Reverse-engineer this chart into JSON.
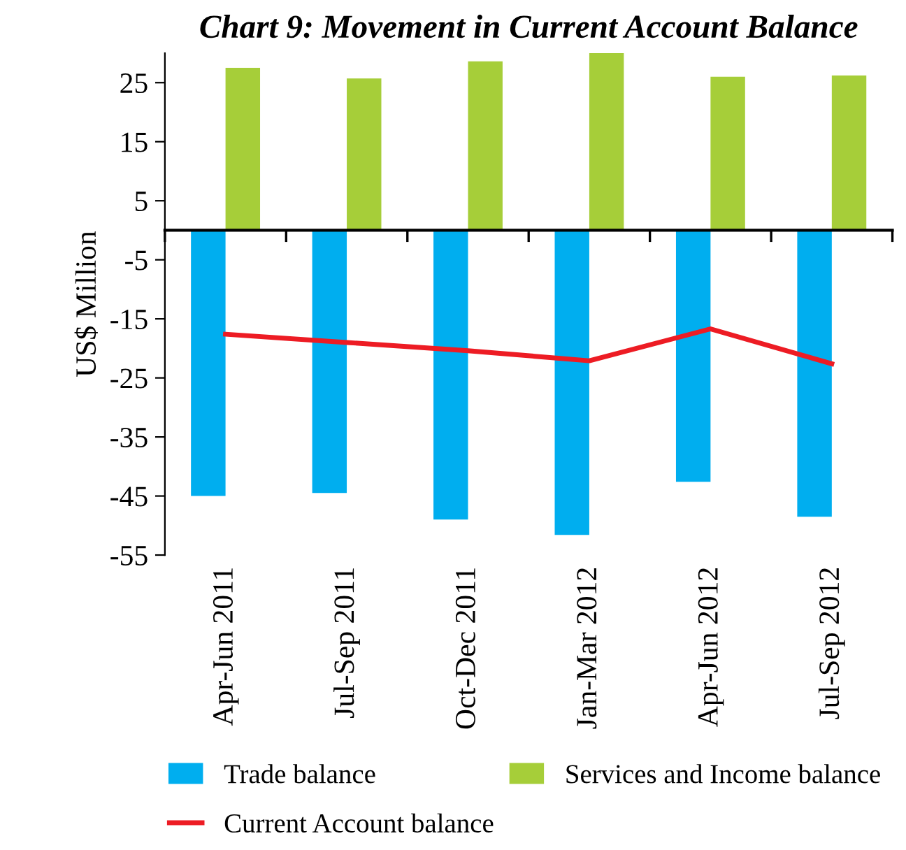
{
  "chart_data": {
    "type": "bar",
    "title": "Chart 9: Movement in Current Account Balance",
    "ylabel": "US$ Million",
    "categories": [
      "Apr-Jun 2011",
      "Jul-Sep 2011",
      "Oct-Dec 2011",
      "Jan-Mar 2012",
      "Apr-Jun 2012",
      "Jul-Sep 2012"
    ],
    "series": [
      {
        "name": "Trade balance",
        "color": "#00aeef",
        "values": [
          -45.0,
          -44.5,
          -49.0,
          -51.6,
          -42.6,
          -48.5
        ]
      },
      {
        "name": "Services and Income balance",
        "color": "#a6ce39",
        "values": [
          27.5,
          25.7,
          28.6,
          30.0,
          26.0,
          26.2
        ]
      },
      {
        "name": "Current Account balance",
        "type": "line",
        "color": "#ed1c24",
        "values": [
          -17.6,
          -19.0,
          -20.4,
          -22.1,
          -16.7,
          -22.6
        ]
      }
    ],
    "ylim": [
      -55,
      30
    ],
    "yticks": [
      25,
      15,
      5,
      -5,
      -15,
      -25,
      -35,
      -45,
      -55
    ],
    "grid": false,
    "legend": "bottom",
    "marker": "none",
    "line_style": "solid"
  }
}
